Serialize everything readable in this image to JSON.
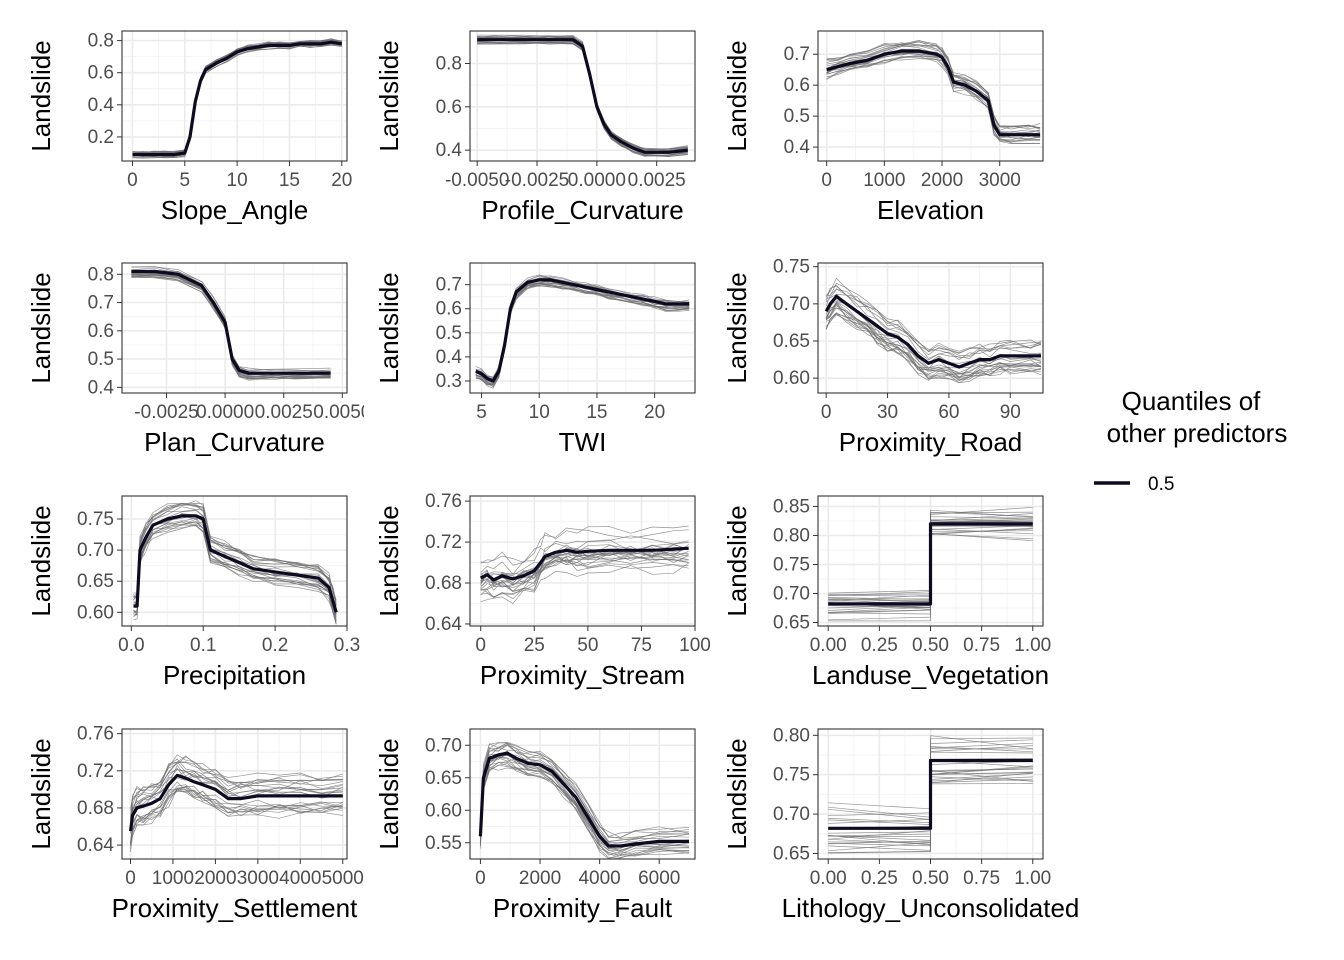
{
  "colors": {
    "median": "#0d0b21",
    "ice": "#6f6f6f",
    "grid_major": "#ebebeb",
    "grid_minor": "#f4f4f4",
    "panel_border": "#333333"
  },
  "legend": {
    "title_line1": "Quantiles of",
    "title_line2": "other predictors",
    "entry": "0.5",
    "position": "right"
  },
  "chart_data": [
    {
      "type": "line",
      "xlabel": "Slope_Angle",
      "ylabel": "Landslide",
      "xlim": [
        -1,
        20.5
      ],
      "ylim": [
        0.05,
        0.86
      ],
      "xticks": [
        0,
        5,
        10,
        15,
        20
      ],
      "xtick_labels": [
        "0",
        "5",
        "10",
        "15",
        "20"
      ],
      "yticks": [
        0.2,
        0.4,
        0.6,
        0.8
      ],
      "ytick_labels": [
        "0.2",
        "0.4",
        "0.6",
        "0.8"
      ],
      "x": [
        0,
        1,
        2,
        3,
        4,
        5,
        5.5,
        6,
        6.5,
        7,
        8,
        9,
        10,
        11,
        12,
        13,
        14,
        15,
        16,
        17,
        18,
        19,
        20
      ],
      "y": [
        0.09,
        0.09,
        0.09,
        0.09,
        0.09,
        0.1,
        0.2,
        0.42,
        0.55,
        0.62,
        0.66,
        0.69,
        0.73,
        0.75,
        0.76,
        0.77,
        0.77,
        0.77,
        0.78,
        0.78,
        0.78,
        0.79,
        0.78
      ],
      "ice_spread": 0.02
    },
    {
      "type": "line",
      "xlabel": "Profile_Curvature",
      "ylabel": "Landslide",
      "xlim": [
        -0.0053,
        0.0041
      ],
      "ylim": [
        0.35,
        0.95
      ],
      "xticks": [
        -0.005,
        -0.0025,
        0.0,
        0.0025
      ],
      "xtick_labels": [
        "-0.0050",
        "-0.0025",
        "0.0000",
        "0.0025"
      ],
      "yticks": [
        0.4,
        0.6,
        0.8
      ],
      "ytick_labels": [
        "0.4",
        "0.6",
        "0.8"
      ],
      "x": [
        -0.005,
        -0.004,
        -0.003,
        -0.002,
        -0.001,
        -0.0006,
        -0.0003,
        0,
        0.0003,
        0.0006,
        0.001,
        0.0015,
        0.002,
        0.003,
        0.0038
      ],
      "y": [
        0.91,
        0.91,
        0.91,
        0.91,
        0.91,
        0.88,
        0.75,
        0.6,
        0.52,
        0.47,
        0.44,
        0.41,
        0.39,
        0.39,
        0.4
      ],
      "ice_spread": 0.02
    },
    {
      "type": "line",
      "xlabel": "Elevation",
      "ylabel": "Landslide",
      "xlim": [
        -150,
        3750
      ],
      "ylim": [
        0.355,
        0.775
      ],
      "xticks": [
        0,
        1000,
        2000,
        3000
      ],
      "xtick_labels": [
        "0",
        "1000",
        "2000",
        "3000"
      ],
      "yticks": [
        0.4,
        0.5,
        0.6,
        0.7
      ],
      "ytick_labels": [
        "0.4",
        "0.5",
        "0.6",
        "0.7"
      ],
      "x": [
        0,
        200,
        400,
        700,
        1000,
        1300,
        1600,
        1900,
        2000,
        2100,
        2200,
        2400,
        2600,
        2800,
        2900,
        3000,
        3200,
        3500,
        3700
      ],
      "y": [
        0.65,
        0.66,
        0.67,
        0.68,
        0.7,
        0.71,
        0.71,
        0.7,
        0.69,
        0.66,
        0.61,
        0.6,
        0.58,
        0.55,
        0.47,
        0.44,
        0.44,
        0.44,
        0.44
      ],
      "ice_spread": 0.03
    },
    {
      "type": "line",
      "xlabel": "Plan_Curvature",
      "ylabel": "Landslide",
      "xlim": [
        -0.0044,
        0.0052
      ],
      "ylim": [
        0.38,
        0.84
      ],
      "xticks": [
        -0.0025,
        0.0,
        0.0025,
        0.005
      ],
      "xtick_labels": [
        "-0.0025",
        "0.0000",
        "0.0025",
        "0.0050"
      ],
      "yticks": [
        0.4,
        0.5,
        0.6,
        0.7,
        0.8
      ],
      "ytick_labels": [
        "0.4",
        "0.5",
        "0.6",
        "0.7",
        "0.8"
      ],
      "x": [
        -0.004,
        -0.003,
        -0.002,
        -0.001,
        -0.0005,
        0,
        0.0003,
        0.0006,
        0.001,
        0.002,
        0.003,
        0.0045
      ],
      "y": [
        0.81,
        0.81,
        0.8,
        0.76,
        0.7,
        0.63,
        0.5,
        0.46,
        0.45,
        0.45,
        0.45,
        0.45
      ],
      "ice_spread": 0.02
    },
    {
      "type": "line",
      "xlabel": "TWI",
      "ylabel": "Landslide",
      "xlim": [
        4,
        23.5
      ],
      "ylim": [
        0.25,
        0.79
      ],
      "xticks": [
        5,
        10,
        15,
        20
      ],
      "xtick_labels": [
        "5",
        "10",
        "15",
        "20"
      ],
      "yticks": [
        0.3,
        0.4,
        0.5,
        0.6,
        0.7
      ],
      "ytick_labels": [
        "0.3",
        "0.4",
        "0.5",
        "0.6",
        "0.7"
      ],
      "x": [
        4.5,
        5,
        5.5,
        6,
        6.5,
        7,
        7.5,
        8,
        9,
        10,
        11,
        12,
        13,
        14,
        15,
        16,
        17,
        18,
        19,
        20,
        21,
        22,
        23
      ],
      "y": [
        0.34,
        0.33,
        0.31,
        0.3,
        0.34,
        0.45,
        0.6,
        0.67,
        0.71,
        0.72,
        0.72,
        0.71,
        0.7,
        0.69,
        0.68,
        0.67,
        0.66,
        0.65,
        0.64,
        0.63,
        0.62,
        0.62,
        0.62
      ],
      "ice_spread": 0.025
    },
    {
      "type": "line",
      "xlabel": "Proximity_Road",
      "ylabel": "Landslide",
      "xlim": [
        -4,
        106
      ],
      "ylim": [
        0.58,
        0.755
      ],
      "xticks": [
        0,
        30,
        60,
        90
      ],
      "xtick_labels": [
        "0",
        "30",
        "60",
        "90"
      ],
      "yticks": [
        0.6,
        0.65,
        0.7,
        0.75
      ],
      "ytick_labels": [
        "0.60",
        "0.65",
        "0.70",
        "0.75"
      ],
      "x": [
        0,
        2,
        5,
        10,
        15,
        20,
        25,
        30,
        35,
        40,
        45,
        50,
        55,
        60,
        65,
        70,
        75,
        80,
        85,
        90,
        100,
        105
      ],
      "y": [
        0.69,
        0.7,
        0.71,
        0.7,
        0.69,
        0.68,
        0.67,
        0.66,
        0.655,
        0.645,
        0.63,
        0.62,
        0.625,
        0.62,
        0.615,
        0.62,
        0.625,
        0.625,
        0.63,
        0.63,
        0.63,
        0.63
      ],
      "ice_spread": 0.02
    },
    {
      "type": "line",
      "xlabel": "Precipitation",
      "ylabel": "Landslide",
      "xlim": [
        -0.013,
        0.3
      ],
      "ylim": [
        0.578,
        0.787
      ],
      "xticks": [
        0.0,
        0.1,
        0.2,
        0.3
      ],
      "xtick_labels": [
        "0.0",
        "0.1",
        "0.2",
        "0.3"
      ],
      "yticks": [
        0.6,
        0.65,
        0.7,
        0.75
      ],
      "ytick_labels": [
        "0.60",
        "0.65",
        "0.70",
        "0.75"
      ],
      "x": [
        0.003,
        0.008,
        0.012,
        0.02,
        0.03,
        0.05,
        0.07,
        0.09,
        0.1,
        0.11,
        0.13,
        0.15,
        0.17,
        0.2,
        0.23,
        0.26,
        0.275,
        0.28,
        0.285
      ],
      "y": [
        0.61,
        0.61,
        0.7,
        0.72,
        0.74,
        0.75,
        0.755,
        0.755,
        0.75,
        0.7,
        0.69,
        0.68,
        0.67,
        0.665,
        0.66,
        0.655,
        0.64,
        0.62,
        0.6
      ],
      "ice_spread": 0.02
    },
    {
      "type": "line",
      "xlabel": "Proximity_Stream",
      "ylabel": "Landslide",
      "xlim": [
        -5,
        100
      ],
      "ylim": [
        0.638,
        0.765
      ],
      "xticks": [
        0,
        25,
        50,
        75,
        100
      ],
      "xtick_labels": [
        "0",
        "25",
        "50",
        "75",
        "100"
      ],
      "yticks": [
        0.64,
        0.68,
        0.72,
        0.76
      ],
      "ytick_labels": [
        "0.64",
        "0.68",
        "0.72",
        "0.76"
      ],
      "x": [
        0,
        3,
        6,
        10,
        15,
        20,
        25,
        28,
        30,
        35,
        40,
        45,
        50,
        60,
        70,
        80,
        90,
        97
      ],
      "y": [
        0.685,
        0.688,
        0.683,
        0.687,
        0.684,
        0.687,
        0.692,
        0.7,
        0.706,
        0.71,
        0.712,
        0.71,
        0.711,
        0.712,
        0.712,
        0.712,
        0.713,
        0.714
      ],
      "ice_spread": 0.02
    },
    {
      "type": "line",
      "xlabel": "Landuse_Vegetation",
      "ylabel": "Landslide",
      "xlim": [
        -0.05,
        1.05
      ],
      "ylim": [
        0.644,
        0.868
      ],
      "xticks": [
        0,
        0.25,
        0.5,
        0.75,
        1.0
      ],
      "xtick_labels": [
        "0.00",
        "0.25",
        "0.50",
        "0.75",
        "1.00"
      ],
      "yticks": [
        0.65,
        0.7,
        0.75,
        0.8,
        0.85
      ],
      "ytick_labels": [
        "0.65",
        "0.70",
        "0.75",
        "0.80",
        "0.85"
      ],
      "x": [
        0,
        0.5,
        0.5,
        1.0
      ],
      "y": [
        0.682,
        0.682,
        0.82,
        0.82
      ],
      "ice_spread": 0.025
    },
    {
      "type": "line",
      "xlabel": "Proximity_Settlement",
      "ylabel": "Landslide",
      "xlim": [
        -200,
        5100
      ],
      "ylim": [
        0.625,
        0.765
      ],
      "xticks": [
        0,
        1000,
        2000,
        3000,
        4000,
        5000
      ],
      "xtick_labels": [
        "0",
        "1000",
        "2000",
        "3000",
        "4000",
        "5000"
      ],
      "yticks": [
        0.64,
        0.68,
        0.72,
        0.76
      ],
      "ytick_labels": [
        "0.64",
        "0.68",
        "0.72",
        "0.76"
      ],
      "x": [
        0,
        50,
        150,
        300,
        500,
        700,
        900,
        1100,
        1300,
        1500,
        1700,
        2000,
        2300,
        2600,
        3000,
        3500,
        4000,
        4500,
        5000
      ],
      "y": [
        0.655,
        0.672,
        0.68,
        0.682,
        0.685,
        0.69,
        0.705,
        0.715,
        0.712,
        0.708,
        0.705,
        0.7,
        0.69,
        0.69,
        0.693,
        0.693,
        0.693,
        0.693,
        0.693
      ],
      "ice_spread": 0.02
    },
    {
      "type": "line",
      "xlabel": "Proximity_Fault",
      "ylabel": "Landslide",
      "xlim": [
        -350,
        7200
      ],
      "ylim": [
        0.525,
        0.725
      ],
      "xticks": [
        0,
        2000,
        4000,
        6000
      ],
      "xtick_labels": [
        "0",
        "2000",
        "4000",
        "6000"
      ],
      "yticks": [
        0.55,
        0.6,
        0.65,
        0.7
      ],
      "ytick_labels": [
        "0.55",
        "0.60",
        "0.65",
        "0.70"
      ],
      "x": [
        0,
        100,
        300,
        600,
        900,
        1200,
        1600,
        2000,
        2400,
        2800,
        3200,
        3600,
        4000,
        4300,
        4700,
        5200,
        6000,
        7000
      ],
      "y": [
        0.56,
        0.65,
        0.68,
        0.685,
        0.688,
        0.68,
        0.672,
        0.67,
        0.66,
        0.64,
        0.62,
        0.59,
        0.56,
        0.545,
        0.545,
        0.548,
        0.552,
        0.552
      ],
      "ice_spread": 0.02
    },
    {
      "type": "line",
      "xlabel": "Lithology_Unconsolidated",
      "ylabel": "Landslide",
      "xlim": [
        -0.05,
        1.05
      ],
      "ylim": [
        0.643,
        0.808
      ],
      "xticks": [
        0,
        0.25,
        0.5,
        0.75,
        1.0
      ],
      "xtick_labels": [
        "0.00",
        "0.25",
        "0.50",
        "0.75",
        "1.00"
      ],
      "yticks": [
        0.65,
        0.7,
        0.75,
        0.8
      ],
      "ytick_labels": [
        "0.65",
        "0.70",
        "0.75",
        "0.80"
      ],
      "x": [
        0,
        0.5,
        0.5,
        1.0
      ],
      "y": [
        0.682,
        0.682,
        0.768,
        0.768
      ],
      "ice_spread": 0.03
    }
  ]
}
